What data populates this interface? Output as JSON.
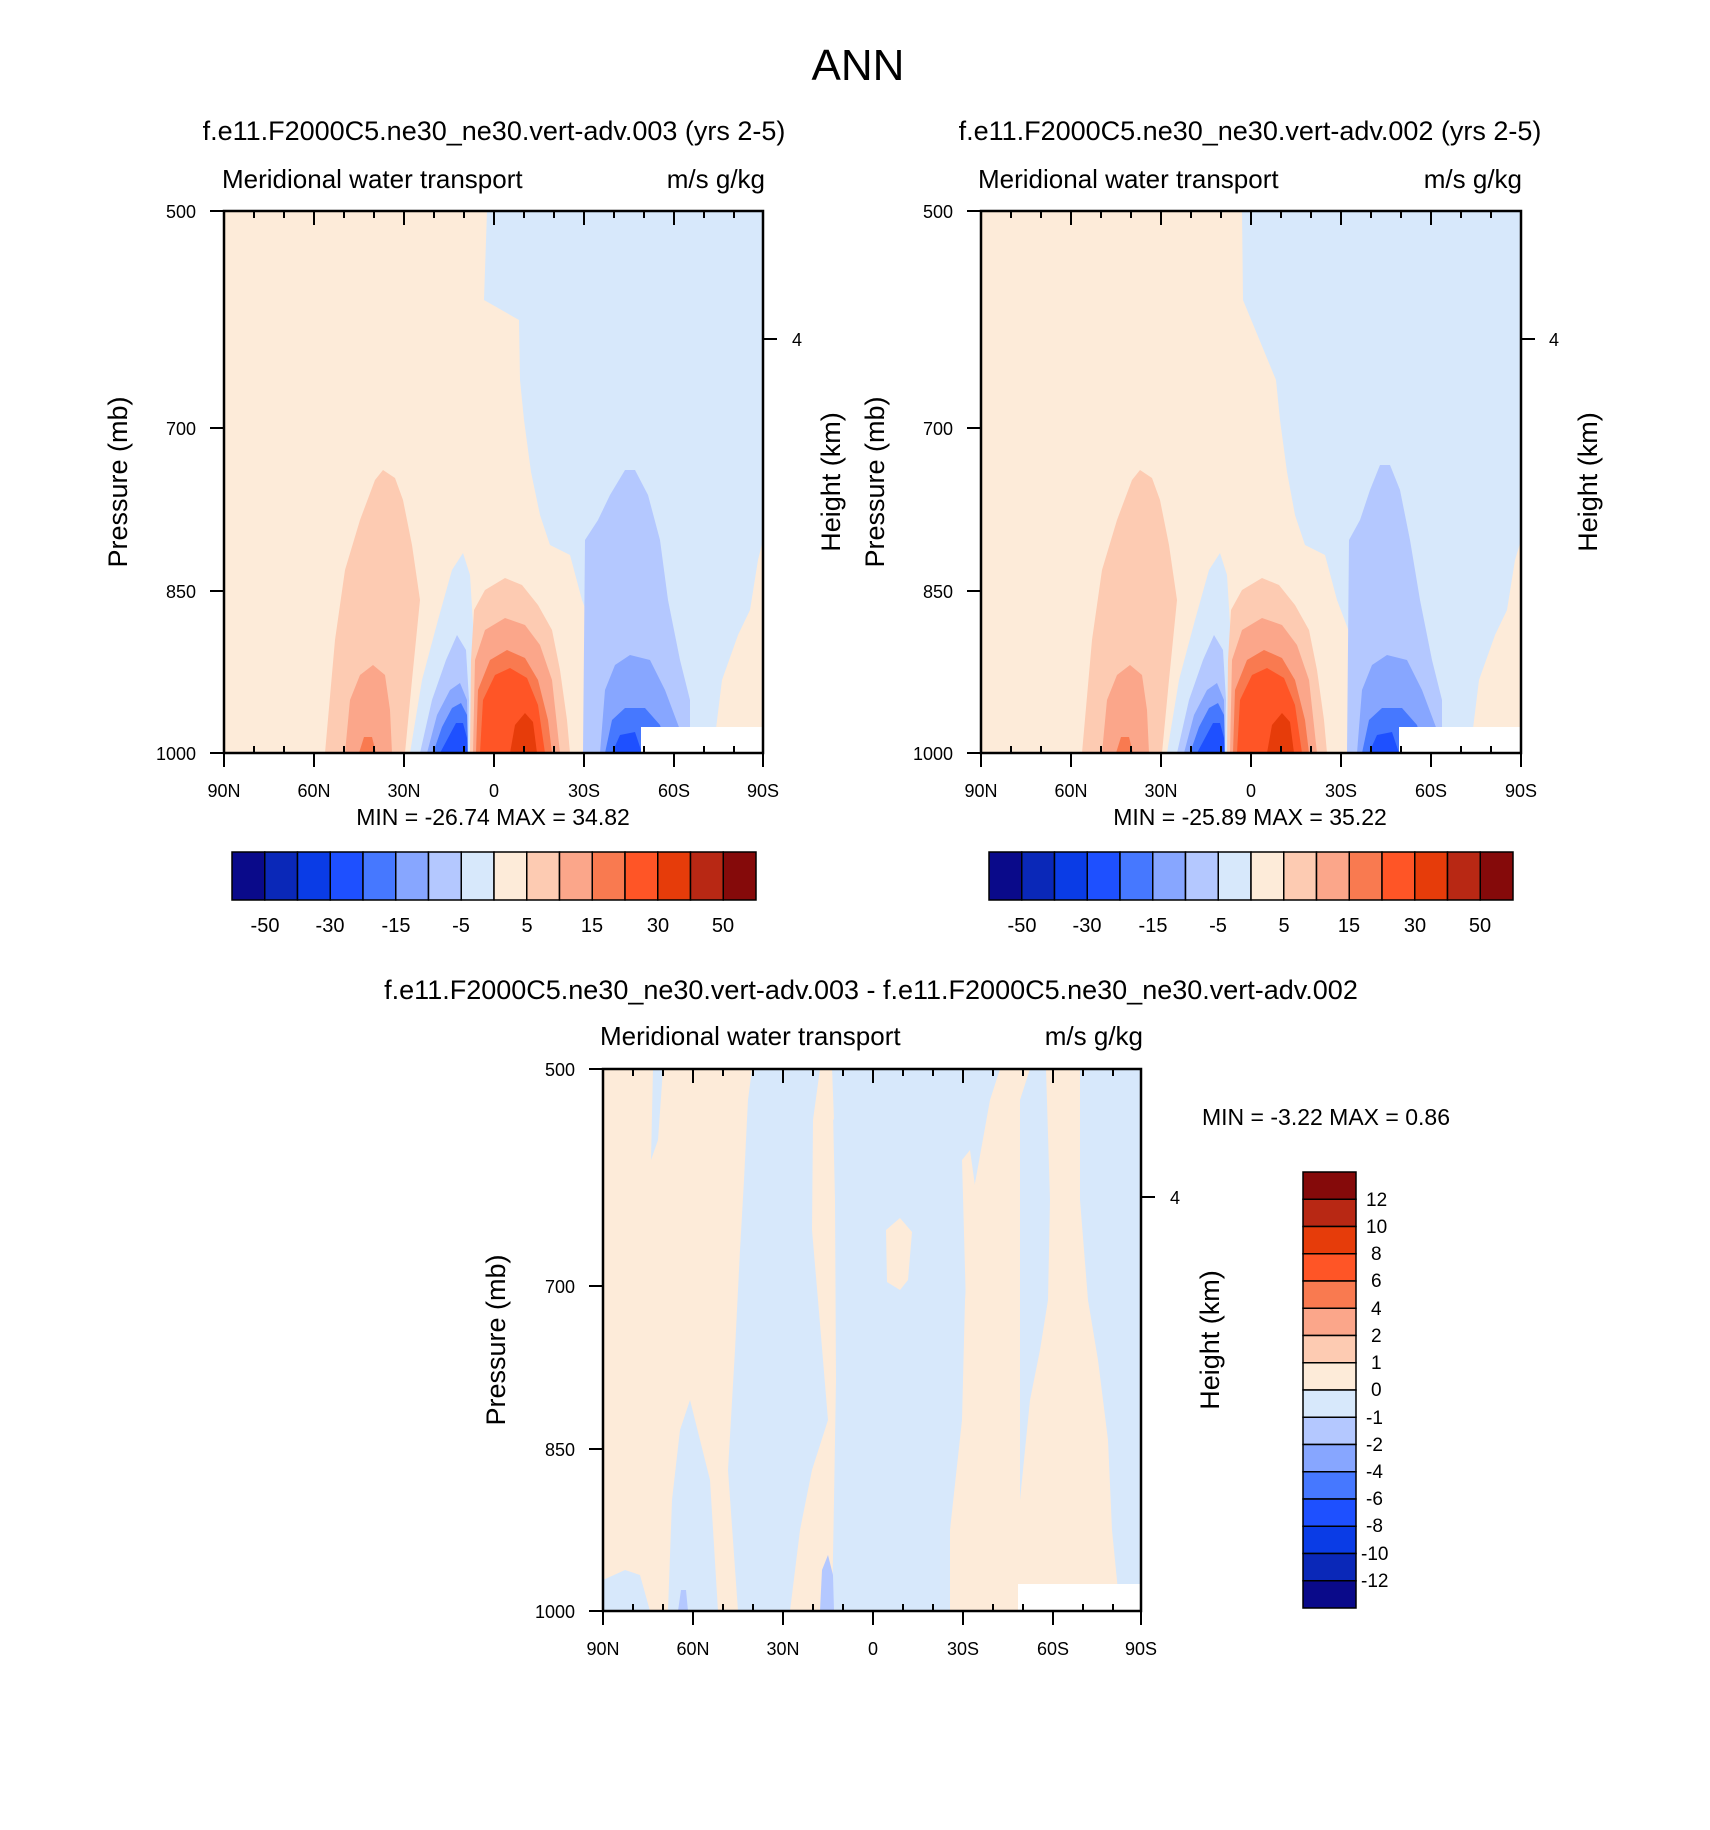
{
  "title": "ANN",
  "colors": {
    "std_levels": [
      "#0a0a8a",
      "#0a28b8",
      "#0a3ce6",
      "#1e50ff",
      "#4678ff",
      "#87a6ff",
      "#b4c8ff",
      "#d7e8fb",
      "#fdebd9",
      "#fdcbb2",
      "#fba68a",
      "#f97a50",
      "#ff5526",
      "#e63c0a",
      "#b82814",
      "#850a0a"
    ],
    "diff_levels": [
      "#0a0a8a",
      "#0a28b8",
      "#0a3ce6",
      "#1e50ff",
      "#4678ff",
      "#87a6ff",
      "#b4c8ff",
      "#d7e8fb",
      "#fdebd9",
      "#fdcbb2",
      "#fba68a",
      "#f97a50",
      "#ff5526",
      "#e63c0a",
      "#b82814",
      "#850a0a"
    ]
  },
  "panels": [
    {
      "title": "f.e11.F2000C5.ne30_ne30.vert-adv.003 (yrs 2-5)",
      "left_label": "Meridional water transport",
      "right_label": "m/s g/kg",
      "ylabel": "Pressure (mb)",
      "y2label": "Height (km)",
      "minmax": "MIN = -26.74  MAX =  34.82"
    },
    {
      "title": "f.e11.F2000C5.ne30_ne30.vert-adv.002 (yrs 2-5)",
      "left_label": "Meridional water transport",
      "right_label": "m/s g/kg",
      "ylabel": "Pressure (mb)",
      "y2label": "Height (km)",
      "minmax": "MIN = -25.89  MAX =  35.22"
    },
    {
      "title": "f.e11.F2000C5.ne30_ne30.vert-adv.003 - f.e11.F2000C5.ne30_ne30.vert-adv.002",
      "left_label": "Meridional water transport",
      "right_label": "m/s g/kg",
      "ylabel": "Pressure (mb)",
      "y2label": "Height (km)",
      "minmax": "MIN =  -3.22  MAX =   0.86"
    }
  ],
  "chart_data": [
    {
      "type": "heatmap",
      "title": "f.e11.F2000C5.ne30_ne30.vert-adv.003 (yrs 2-5)",
      "xlabel": "",
      "ylabel": "Pressure (mb)",
      "y2label": "Height (km)",
      "x_ticks": [
        "90N",
        "60N",
        "30N",
        "0",
        "30S",
        "60S",
        "90S"
      ],
      "y_ticks": [
        "500",
        "700",
        "850",
        "1000"
      ],
      "y2_ticks": [
        "4"
      ],
      "colorbar_labels": [
        "-50",
        "-30",
        "-15",
        "-5",
        "5",
        "15",
        "30",
        "50"
      ],
      "min": -26.74,
      "max": 34.82,
      "features": [
        {
          "lat": 30,
          "p": 935,
          "value": 15
        },
        {
          "lat": -8,
          "p": 975,
          "value": 30
        },
        {
          "lat": 12,
          "p": 985,
          "value": -25
        },
        {
          "lat": -45,
          "p": 985,
          "value": -15
        }
      ]
    },
    {
      "type": "heatmap",
      "title": "f.e11.F2000C5.ne30_ne30.vert-adv.002 (yrs 2-5)",
      "xlabel": "",
      "ylabel": "Pressure (mb)",
      "y2label": "Height (km)",
      "x_ticks": [
        "90N",
        "60N",
        "30N",
        "0",
        "30S",
        "60S",
        "90S"
      ],
      "y_ticks": [
        "500",
        "700",
        "850",
        "1000"
      ],
      "y2_ticks": [
        "4"
      ],
      "colorbar_labels": [
        "-50",
        "-30",
        "-15",
        "-5",
        "5",
        "15",
        "30",
        "50"
      ],
      "min": -25.89,
      "max": 35.22,
      "features": [
        {
          "lat": 30,
          "p": 935,
          "value": 15
        },
        {
          "lat": -8,
          "p": 975,
          "value": 30
        },
        {
          "lat": 12,
          "p": 985,
          "value": -25
        },
        {
          "lat": -45,
          "p": 985,
          "value": -15
        }
      ]
    },
    {
      "type": "heatmap",
      "title": "f.e11.F2000C5.ne30_ne30.vert-adv.003 - f.e11.F2000C5.ne30_ne30.vert-adv.002",
      "xlabel": "",
      "ylabel": "Pressure (mb)",
      "y2label": "Height (km)",
      "x_ticks": [
        "90N",
        "60N",
        "30N",
        "0",
        "30S",
        "60S",
        "90S"
      ],
      "y_ticks": [
        "500",
        "700",
        "850",
        "1000"
      ],
      "y2_ticks": [
        "4"
      ],
      "colorbar_labels": [
        "12",
        "10",
        "8",
        "6",
        "4",
        "2",
        "1",
        "0",
        "-1",
        "-2",
        "-4",
        "-6",
        "-8",
        "-10",
        "-12"
      ],
      "min": -3.22,
      "max": 0.86
    }
  ]
}
